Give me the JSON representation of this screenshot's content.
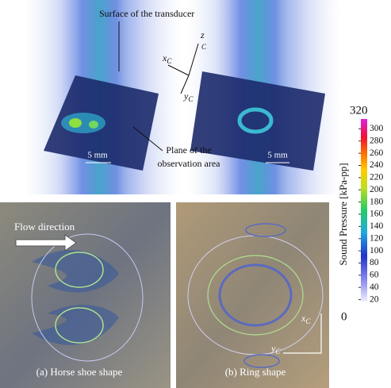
{
  "top_panel": {
    "transducer_label": "Surface of the transducer",
    "plane_label_lines": [
      "Plane of the",
      "observation area"
    ],
    "scale_left": "5 mm",
    "scale_right": "5 mm",
    "axes": {
      "x": {
        "letter": "x",
        "sub": "C"
      },
      "z": {
        "letter": "z",
        "sub": "C"
      },
      "y": {
        "letter": "y",
        "sub": "C"
      }
    }
  },
  "colorbar": {
    "label": "Sound Pressure [kPa-pp]",
    "max": 320,
    "ticks": [
      300,
      280,
      260,
      240,
      220,
      200,
      180,
      160,
      140,
      120,
      100,
      80,
      60,
      40,
      20
    ],
    "min": 0
  },
  "bottom_panel": {
    "flow_label": "Flow direction",
    "caption_a": "(a) Horse shoe shape",
    "caption_b": "(b) Ring shape",
    "axes": {
      "x": {
        "letter": "x",
        "sub": "C"
      },
      "y": {
        "letter": "y",
        "sub": "C"
      }
    }
  }
}
